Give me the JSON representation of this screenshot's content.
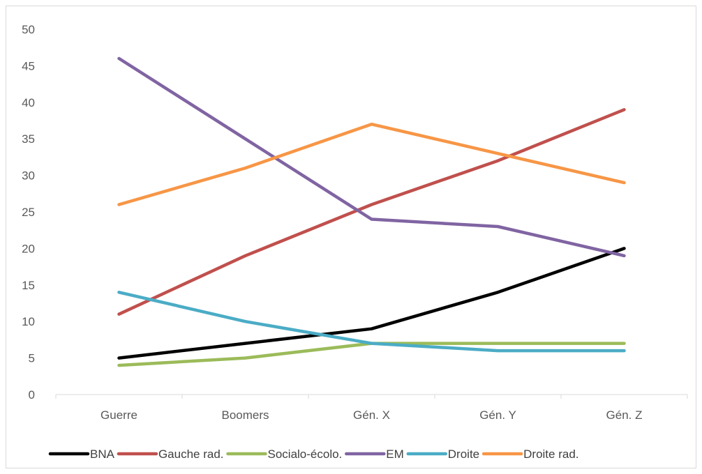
{
  "chart_data": {
    "type": "line",
    "categories": [
      "Guerre",
      "Boomers",
      "Gén. X",
      "Gén. Y",
      "Gén. Z"
    ],
    "ylim": [
      0,
      50
    ],
    "yticks": [
      0,
      5,
      10,
      15,
      20,
      25,
      30,
      35,
      40,
      45,
      50
    ],
    "grid": false,
    "legend": "bottom",
    "series": [
      {
        "name": "BNA",
        "color": "#000000",
        "values": [
          5,
          7,
          9,
          14,
          20
        ]
      },
      {
        "name": "Gauche rad.",
        "color": "#c0504d",
        "values": [
          11,
          19,
          26,
          32,
          39
        ]
      },
      {
        "name": "Socialo-écolo.",
        "color": "#9bbb59",
        "values": [
          4,
          5,
          7,
          7,
          7
        ]
      },
      {
        "name": "EM",
        "color": "#8064a2",
        "values": [
          46,
          35,
          24,
          23,
          19
        ]
      },
      {
        "name": "Droite",
        "color": "#4bacc6",
        "values": [
          14,
          10,
          7,
          6,
          6
        ]
      },
      {
        "name": "Droite rad.",
        "color": "#f79646",
        "values": [
          26,
          31,
          37,
          33,
          29
        ]
      }
    ]
  }
}
